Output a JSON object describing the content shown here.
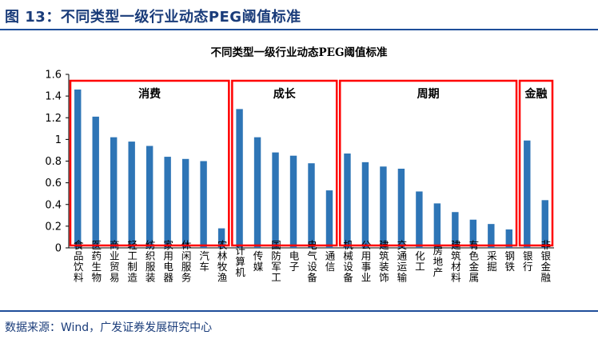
{
  "header": {
    "figure_title": "图 13：不同类型一级行业动态PEG阈值标准"
  },
  "footer": {
    "source": "数据来源：Wind，广发证券发展研究中心"
  },
  "colors": {
    "bar": "#2e75b6",
    "group_box": "#ff0000",
    "header_line": "#1f4e9a"
  },
  "chart_data": {
    "type": "bar",
    "title": "不同类型一级行业动态PEG阈值标准",
    "xlabel": "",
    "ylabel": "",
    "ylim": [
      0,
      1.6
    ],
    "yticks": [
      "0",
      "0.2",
      "0.4",
      "0.6",
      "0.8",
      "1",
      "1.2",
      "1.4",
      "1.6"
    ],
    "grid": false,
    "categories": [
      "食品饮料",
      "医药生物",
      "商业贸易",
      "轻工制造",
      "纺织服装",
      "家用电器",
      "休闲服务",
      "汽车",
      "农林牧渔",
      "计算机",
      "传媒",
      "国防军工",
      "电子",
      "电气设备",
      "通信",
      "机械设备",
      "公用事业",
      "建筑装饰",
      "交通运输",
      "化工",
      "房地产",
      "建筑材料",
      "有色金属",
      "采掘",
      "钢铁",
      "银行",
      "非银金融"
    ],
    "values": [
      1.46,
      1.21,
      1.02,
      0.98,
      0.94,
      0.84,
      0.82,
      0.8,
      0.18,
      1.28,
      1.02,
      0.88,
      0.85,
      0.78,
      0.53,
      0.87,
      0.79,
      0.75,
      0.73,
      0.52,
      0.41,
      0.33,
      0.26,
      0.22,
      0.17,
      0.99,
      0.44
    ],
    "groups": [
      {
        "label": "消费",
        "start": 0,
        "end": 8
      },
      {
        "label": "成长",
        "start": 9,
        "end": 14
      },
      {
        "label": "周期",
        "start": 15,
        "end": 24
      },
      {
        "label": "金融",
        "start": 25,
        "end": 26
      }
    ]
  }
}
